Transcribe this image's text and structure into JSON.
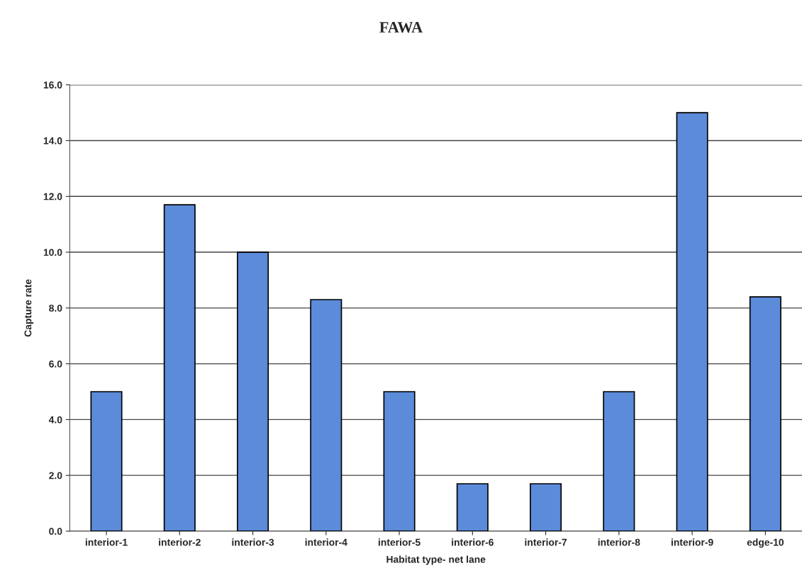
{
  "chart_data": {
    "type": "bar",
    "title": "FAWA",
    "xlabel": "Habitat type- net lane",
    "ylabel": "Capture rate",
    "categories": [
      "interior-1",
      "interior-2",
      "interior-3",
      "interior-4",
      "interior-5",
      "interior-6",
      "interior-7",
      "interior-8",
      "interior-9",
      "edge-10"
    ],
    "values": [
      5.0,
      11.7,
      10.0,
      8.3,
      5.0,
      1.7,
      1.7,
      5.0,
      15.0,
      8.4
    ],
    "color": "#5b8bd9",
    "ylim": [
      0,
      16
    ],
    "yticks": [
      {
        "value": 0,
        "label": "0.0"
      },
      {
        "value": 2,
        "label": "2.0"
      },
      {
        "value": 4,
        "label": "4.0"
      },
      {
        "value": 6,
        "label": "6.0"
      },
      {
        "value": 8,
        "label": "8.0"
      },
      {
        "value": 10,
        "label": "10.0"
      },
      {
        "value": 12,
        "label": "12.0"
      },
      {
        "value": 14,
        "label": "14.0"
      },
      {
        "value": 16,
        "label": "16.0"
      }
    ],
    "grid": "y",
    "legend": false
  }
}
